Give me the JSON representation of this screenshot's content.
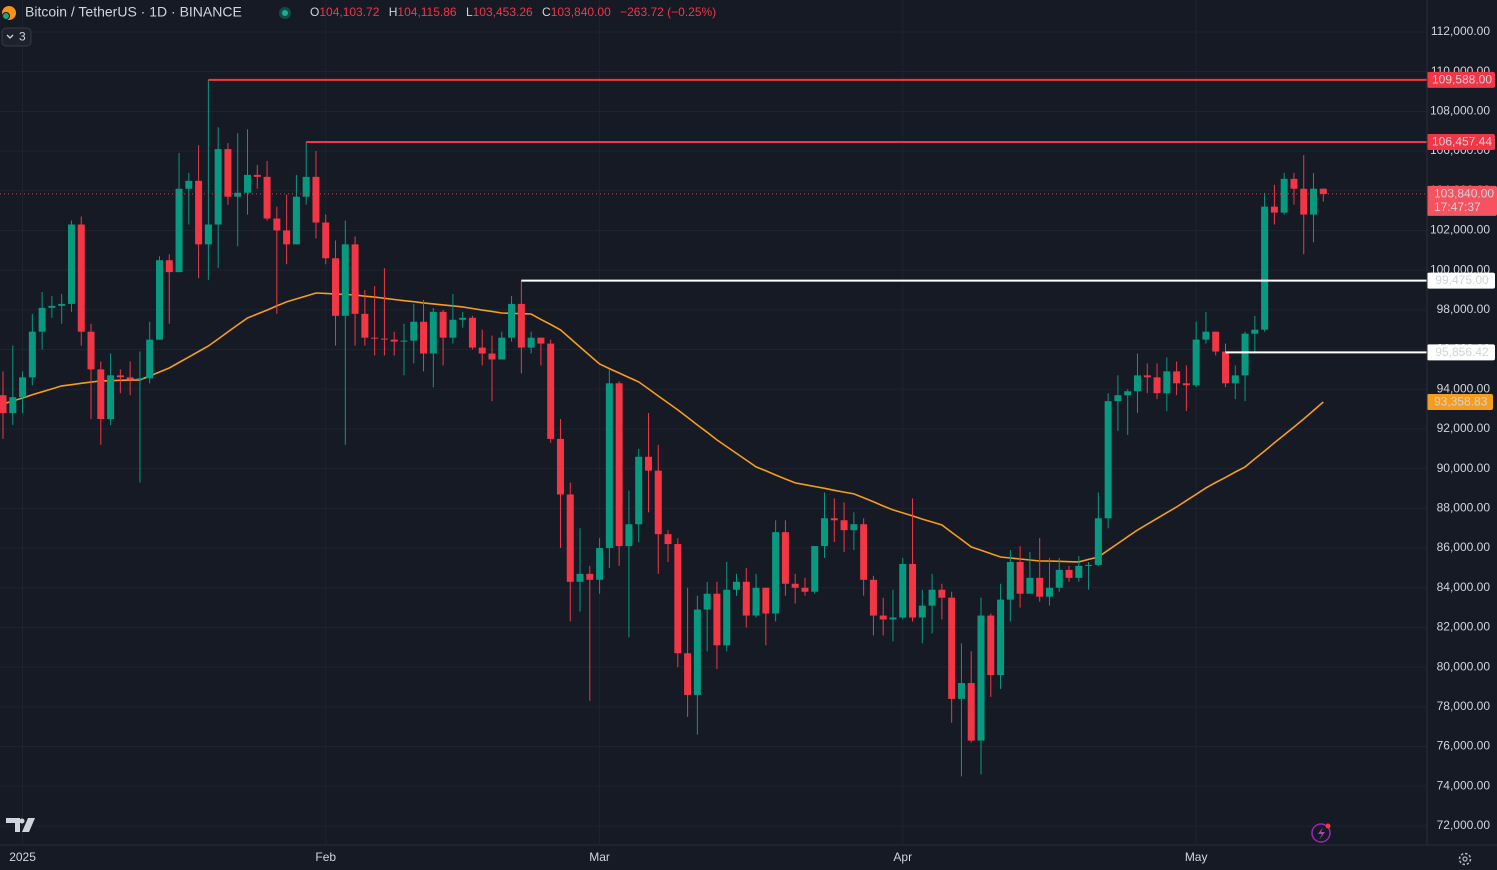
{
  "header": {
    "symbol": "Bitcoin / TetherUS · 1D · BINANCE",
    "open_key": "O",
    "open": "104,103.72",
    "high_key": "H",
    "high": "104,115.86",
    "low_key": "L",
    "low": "103,453.26",
    "close_key": "C",
    "close": "103,840.00",
    "change": "−263.72 (−0.25%)"
  },
  "ui": {
    "indicator_count": "3"
  },
  "chart_data": {
    "type": "candlestick",
    "categories": [
      null,
      null,
      "2025",
      null,
      null,
      null,
      null,
      null,
      null,
      null,
      null,
      null,
      null,
      null,
      null,
      null,
      null,
      null,
      null,
      null,
      null,
      null,
      null,
      null,
      null,
      null,
      null,
      null,
      null,
      null,
      null,
      null,
      null,
      "Feb",
      null,
      null,
      null,
      null,
      null,
      null,
      null,
      null,
      null,
      null,
      null,
      null,
      null,
      null,
      null,
      null,
      null,
      null,
      null,
      null,
      null,
      null,
      null,
      null,
      null,
      null,
      null,
      "Mar",
      null,
      null,
      null,
      null,
      null,
      null,
      null,
      null,
      null,
      null,
      null,
      null,
      null,
      null,
      null,
      null,
      null,
      null,
      null,
      null,
      null,
      null,
      null,
      null,
      null,
      null,
      null,
      null,
      null,
      null,
      "Apr",
      null,
      null,
      null,
      null,
      null,
      null,
      null,
      null,
      null,
      null,
      null,
      null,
      null,
      null,
      null,
      null,
      null,
      null,
      null,
      null,
      null,
      null,
      null,
      null,
      null,
      null,
      null,
      null,
      null,
      "May",
      null,
      null,
      null,
      null,
      null,
      null,
      null,
      null,
      null,
      null,
      null,
      null,
      null
    ],
    "open": [
      93700,
      92800,
      93600,
      94600,
      96900,
      98100,
      98200,
      98300,
      102300,
      96900,
      95000,
      92500,
      94700,
      94600,
      94500,
      94550,
      96500,
      100500,
      99900,
      104100,
      104500,
      101300,
      102300,
      106100,
      103700,
      103900,
      104800,
      104700,
      102600,
      102000,
      101300,
      103700,
      104700,
      102400,
      100600,
      97700,
      101300,
      97800,
      96600,
      96550,
      96500,
      96400,
      96450,
      97400,
      95800,
      97900,
      96600,
      97500,
      97600,
      96100,
      95800,
      95500,
      96600,
      98300,
      96100,
      96600,
      96300,
      91500,
      88700,
      84300,
      84700,
      84400,
      86000,
      94300,
      86100,
      87200,
      90600,
      89900,
      86700,
      86200,
      80700,
      78600,
      82900,
      83700,
      81100,
      83900,
      84300,
      82600,
      84000,
      82700,
      86800,
      84200,
      84000,
      83800,
      86100,
      87500,
      87400,
      86900,
      87200,
      84400,
      82600,
      82400,
      82500,
      85200,
      82500,
      83100,
      83900,
      83500,
      78400,
      79200,
      76300,
      82600,
      79600,
      83400,
      85300,
      83700,
      84500,
      83550,
      84000,
      84900,
      84500,
      85100,
      85150,
      87500,
      93400,
      93700,
      93900,
      94700,
      94600,
      93800,
      94900,
      94300,
      94200,
      96500,
      96900,
      95900,
      94300,
      94700,
      96800,
      97000,
      103200,
      102900,
      104600,
      104100,
      102800,
      104103.72
    ],
    "high": [
      94900,
      96200,
      94900,
      97800,
      98900,
      98700,
      98800,
      102500,
      102700,
      97300,
      95400,
      95800,
      95000,
      95400,
      95900,
      97400,
      100700,
      100800,
      105900,
      104900,
      106300,
      109588,
      107200,
      106400,
      106900,
      107100,
      105300,
      105500,
      103200,
      103800,
      104800,
      106457.44,
      106000,
      102800,
      101500,
      102500,
      101700,
      99000,
      99200,
      100100,
      96900,
      97300,
      98300,
      98500,
      98100,
      98000,
      98800,
      97900,
      97700,
      97000,
      96700,
      96900,
      98700,
      99475,
      96900,
      96600,
      96500,
      92500,
      89300,
      87000,
      85100,
      86500,
      95000,
      94400,
      88900,
      91000,
      92800,
      91200,
      86900,
      86500,
      84000,
      83600,
      84300,
      84300,
      85300,
      84700,
      85000,
      84700,
      84000,
      87400,
      87400,
      84700,
      84500,
      86100,
      88800,
      88500,
      88300,
      87800,
      87500,
      84600,
      83500,
      83900,
      85500,
      88500,
      83900,
      84700,
      84200,
      83800,
      81200,
      80800,
      83500,
      82700,
      84200,
      85900,
      86100,
      85800,
      86500,
      85500,
      85500,
      85100,
      85600,
      85300,
      88800,
      93800,
      94700,
      94000,
      95800,
      95300,
      95300,
      95600,
      95400,
      95200,
      97400,
      97900,
      96900,
      96300,
      95200,
      96900,
      97700,
      103900,
      104300,
      104900,
      104900,
      105800,
      104900,
      104115.86
    ],
    "low": [
      91500,
      92200,
      92800,
      94200,
      96000,
      97600,
      97300,
      97900,
      96200,
      92500,
      91200,
      92200,
      93800,
      93700,
      89300,
      94300,
      96500,
      97300,
      99900,
      102300,
      99600,
      99500,
      100100,
      103300,
      101200,
      102800,
      104100,
      102500,
      97800,
      100300,
      101300,
      103300,
      101600,
      100300,
      96200,
      91200,
      96200,
      96200,
      95700,
      95700,
      95700,
      94700,
      95300,
      94900,
      94100,
      95200,
      96300,
      97100,
      96000,
      95200,
      93400,
      95500,
      96400,
      94800,
      95800,
      95200,
      91300,
      86000,
      82300,
      82800,
      78300,
      83700,
      85000,
      85100,
      81500,
      86300,
      87800,
      84700,
      85300,
      80000,
      77500,
      76600,
      80800,
      79900,
      80800,
      83600,
      82000,
      82500,
      81100,
      82300,
      83600,
      83200,
      83600,
      83700,
      85500,
      86300,
      85800,
      85900,
      83600,
      81600,
      81600,
      81300,
      82400,
      82300,
      81200,
      81700,
      82400,
      77200,
      74500,
      76200,
      74600,
      78500,
      78900,
      82300,
      83000,
      83700,
      83300,
      83100,
      83800,
      84300,
      84300,
      83900,
      85100,
      87000,
      91900,
      91700,
      92800,
      93800,
      93500,
      92900,
      93700,
      92900,
      94100,
      96300,
      95700,
      94100,
      93500,
      93400,
      95800,
      96900,
      102300,
      102800,
      103300,
      100800,
      101400,
      103453.26
    ],
    "close": [
      92800,
      93600,
      94600,
      96900,
      98100,
      98200,
      98300,
      102300,
      96900,
      95000,
      92500,
      94700,
      94600,
      94500,
      94550,
      96500,
      100500,
      99900,
      104100,
      104500,
      101300,
      102300,
      106100,
      103700,
      103900,
      104800,
      104700,
      102600,
      102000,
      101300,
      103700,
      104700,
      102400,
      100600,
      97700,
      101300,
      97800,
      96600,
      96550,
      96500,
      96400,
      96450,
      97400,
      95800,
      97900,
      96600,
      97500,
      97600,
      96100,
      95800,
      95500,
      96600,
      98300,
      96100,
      96600,
      96300,
      91500,
      88700,
      84300,
      84700,
      84400,
      86000,
      94300,
      86100,
      87200,
      90600,
      89900,
      86700,
      86200,
      80700,
      78600,
      82900,
      83700,
      81100,
      83900,
      84300,
      82600,
      84000,
      82700,
      86800,
      84200,
      84000,
      83800,
      86100,
      87500,
      87400,
      86900,
      87200,
      84400,
      82600,
      82400,
      82500,
      85200,
      82500,
      83100,
      83900,
      83500,
      78400,
      79200,
      76300,
      82600,
      79600,
      83400,
      85300,
      83700,
      84500,
      83550,
      84000,
      84900,
      84500,
      85100,
      85150,
      87500,
      93400,
      93700,
      93900,
      94700,
      94600,
      93800,
      94900,
      94300,
      94200,
      96500,
      96900,
      95900,
      94300,
      94700,
      96800,
      97000,
      103200,
      102900,
      104600,
      104100,
      102800,
      104103.72,
      103840
    ],
    "up_color": "#089981",
    "down_color": "#f23645",
    "last_close_label": "103,840.00",
    "countdown": "17:47:37",
    "series": [
      {
        "color": "#f59d1e",
        "last_value_label": "93,358.83",
        "values": [
          93260,
          93410,
          93560,
          93720,
          93870,
          94020,
          94170,
          94230,
          94300,
          94360,
          94420,
          94430,
          94450,
          94460,
          94470,
          94670,
          94870,
          95070,
          95350,
          95620,
          95900,
          96180,
          96530,
          96890,
          97240,
          97590,
          97790,
          97990,
          98200,
          98400,
          98550,
          98700,
          98850,
          98830,
          98800,
          98780,
          98750,
          98690,
          98640,
          98580,
          98520,
          98460,
          98410,
          98350,
          98300,
          98250,
          98200,
          98150,
          98070,
          97990,
          97920,
          97840,
          97820,
          97810,
          97790,
          97520,
          97260,
          96990,
          96560,
          96130,
          95700,
          95270,
          95040,
          94820,
          94590,
          94370,
          94020,
          93660,
          93310,
          92960,
          92580,
          92200,
          91830,
          91450,
          91110,
          90770,
          90430,
          90090,
          89890,
          89680,
          89480,
          89280,
          89190,
          89100,
          89010,
          88910,
          88820,
          88730,
          88530,
          88330,
          88120,
          87920,
          87770,
          87620,
          87460,
          87310,
          87160,
          86790,
          86430,
          86060,
          85890,
          85720,
          85550,
          85500,
          85450,
          85400,
          85350,
          85340,
          85330,
          85310,
          85300,
          85430,
          85550,
          85890,
          86230,
          86570,
          86910,
          87200,
          87490,
          87780,
          88070,
          88390,
          88710,
          89030,
          89300,
          89560,
          89830,
          90090,
          90490,
          90890,
          91300,
          91700,
          92100,
          92500,
          92930,
          93358.83
        ]
      }
    ],
    "levels": [
      {
        "value": 109588,
        "label": "109,588.00",
        "color": "#f23645"
      },
      {
        "value": 106457.44,
        "label": "106,457.44",
        "color": "#f23645"
      },
      {
        "value": 99475,
        "label": "99,475.00",
        "color": "#ffffff"
      },
      {
        "value": 95856.42,
        "label": "95,856.42",
        "color": "#ffffff"
      }
    ],
    "ylim": [
      71040,
      113610
    ],
    "yticks": [
      {
        "value": 72000,
        "label": "72,000.00"
      },
      {
        "value": 74000,
        "label": "74,000.00"
      },
      {
        "value": 76000,
        "label": "76,000.00"
      },
      {
        "value": 78000,
        "label": "78,000.00"
      },
      {
        "value": 80000,
        "label": "80,000.00"
      },
      {
        "value": 82000,
        "label": "82,000.00"
      },
      {
        "value": 84000,
        "label": "84,000.00"
      },
      {
        "value": 86000,
        "label": "86,000.00"
      },
      {
        "value": 88000,
        "label": "88,000.00"
      },
      {
        "value": 90000,
        "label": "90,000.00"
      },
      {
        "value": 92000,
        "label": "92,000.00"
      },
      {
        "value": 94000,
        "label": "94,000.00"
      },
      {
        "value": 96000,
        "label": "96,000.00"
      },
      {
        "value": 98000,
        "label": "98,000.00"
      },
      {
        "value": 100000,
        "label": "100,000.00"
      },
      {
        "value": 102000,
        "label": "102,000.00"
      },
      {
        "value": 104000,
        "label": "104,000.00"
      },
      {
        "value": 106000,
        "label": "106,000.00"
      },
      {
        "value": 108000,
        "label": "108,000.00"
      },
      {
        "value": 110000,
        "label": "110,000.00"
      },
      {
        "value": 112000,
        "label": "112,000.00"
      }
    ],
    "grid": true
  }
}
